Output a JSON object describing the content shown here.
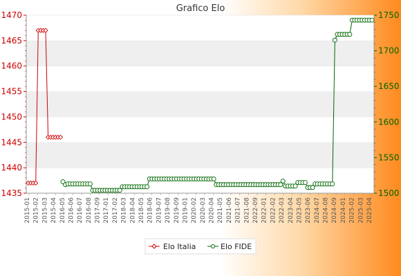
{
  "chart_data": {
    "type": "line",
    "title": "Grafico Elo",
    "left_axis": {
      "ylim": [
        1435,
        1470
      ],
      "ticks": [
        1435,
        1440,
        1445,
        1450,
        1455,
        1460,
        1465,
        1470
      ],
      "color": "#cc0000"
    },
    "right_axis": {
      "ylim": [
        1500,
        1750
      ],
      "ticks": [
        1500,
        1550,
        1600,
        1650,
        1700,
        1750
      ],
      "color": "#006600"
    },
    "x_count": 120,
    "x_tick_labels": [
      "2015",
      "2016",
      "2017",
      "2018",
      "2019",
      "2020",
      "2021",
      "2022",
      "2023",
      "2024",
      "2025"
    ],
    "grid": true,
    "legend_position": "bottom",
    "series": [
      {
        "name": "Elo Italia",
        "axis": "left",
        "color": "#cc0000",
        "marker": "diamond",
        "segments": [
          [
            0,
            1437
          ],
          [
            3,
            1437
          ],
          [
            4,
            1467
          ],
          [
            7,
            1467
          ],
          [
            8,
            1446
          ],
          [
            13,
            1446
          ]
        ]
      },
      {
        "name": "Elo FIDE",
        "axis": "right",
        "color": "#006600",
        "marker": "circle",
        "segments": [
          [
            14,
            1516
          ],
          [
            15,
            1512
          ],
          [
            16,
            1513
          ],
          [
            25,
            1513
          ],
          [
            26,
            1504
          ],
          [
            37,
            1504
          ],
          [
            38,
            1509
          ],
          [
            48,
            1509
          ],
          [
            49,
            1520
          ],
          [
            75,
            1520
          ],
          [
            76,
            1512
          ],
          [
            102,
            1512
          ],
          [
            103,
            1517
          ],
          [
            104,
            1510
          ],
          [
            108,
            1510
          ],
          [
            109,
            1515
          ],
          [
            112,
            1515
          ],
          [
            113,
            1508
          ],
          [
            115,
            1508
          ],
          [
            116,
            1513
          ],
          [
            123,
            1513
          ],
          [
            124,
            1715
          ],
          [
            125,
            1723
          ],
          [
            130,
            1723
          ],
          [
            131,
            1743
          ],
          [
            139,
            1743
          ]
        ]
      }
    ]
  }
}
